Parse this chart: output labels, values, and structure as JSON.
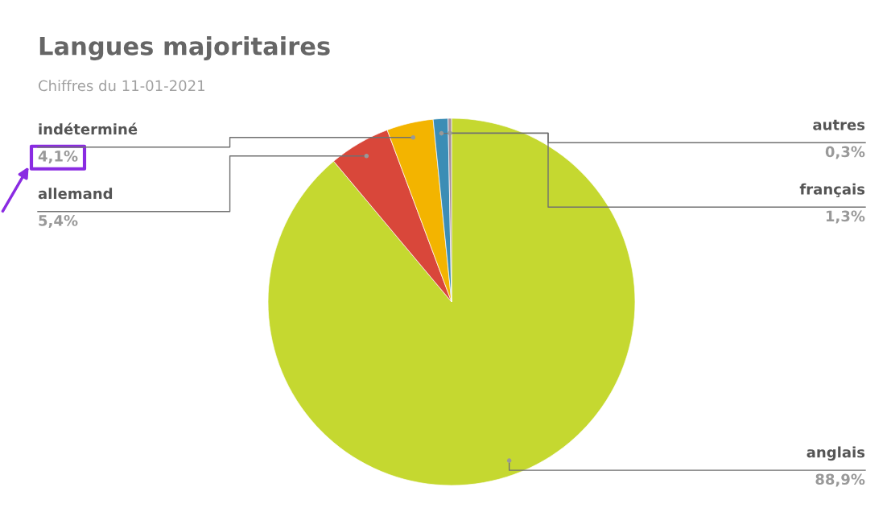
{
  "chart_data": {
    "type": "pie",
    "title": "Langues majoritaires",
    "subtitle": "Chiffres du 11-01-2021",
    "categories": [
      "anglais",
      "allemand",
      "indéterminé",
      "français",
      "autres"
    ],
    "values": [
      88.9,
      5.4,
      4.1,
      1.3,
      0.3
    ],
    "value_labels": [
      "88,9%",
      "5,4%",
      "4,1%",
      "1,3%",
      "0,3%"
    ],
    "colors": [
      "#c5d830",
      "#d9473a",
      "#f3b400",
      "#3b8db5",
      "#a8909c"
    ]
  }
}
